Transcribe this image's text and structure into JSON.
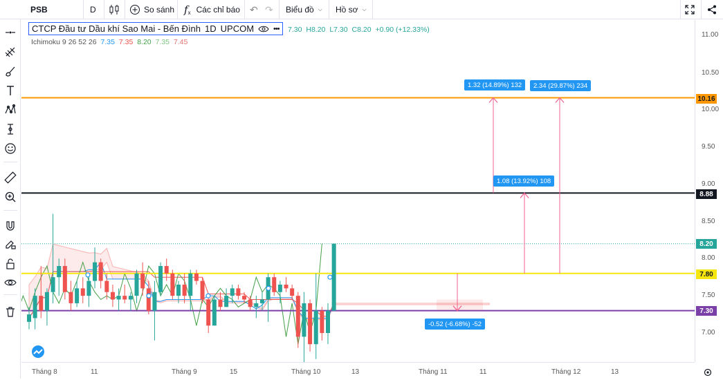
{
  "toolbar": {
    "symbol": "PSB",
    "interval": "D",
    "compare_label": "So sánh",
    "indicators_label": "Các chỉ báo",
    "chart_label": "Biểu đồ",
    "profile_label": "Hồ sơ"
  },
  "legend": {
    "title": "CTCP Đầu tư Dầu khí Sao Mai - Bến Đình",
    "interval": "1D",
    "exchange": "UPCOM",
    "ohlc": [
      "7.30",
      "H8.20",
      "L7.30",
      "C8.20",
      "+0.90 (+12.33%)"
    ],
    "ichimoku_name": "Ichimoku 9 26 52 26",
    "ichimoku_values": [
      "7.35",
      "7.35",
      "8.20",
      "7.35",
      "7.45"
    ]
  },
  "colors": {
    "up": "#26a69a",
    "down": "#ef5350",
    "orange_line": "#ff9800",
    "black_line": "#131722",
    "yellow_line": "#f5e60f",
    "purple_line": "#7b3fa8",
    "measure": "#2196f3",
    "measure_arrow": "#f06292",
    "ichi_blue": "#2196f3",
    "ichi_red": "#ef5350",
    "ichi_green": "#43a047",
    "ichi_lightgreen": "#81c784",
    "ichi_pink": "#e57373"
  },
  "price_axis": {
    "ticks": [
      "11.00",
      "10.50",
      "10.00",
      "9.50",
      "9.00",
      "8.50",
      "8.00",
      "7.50",
      "7.00"
    ],
    "labels": [
      {
        "text": "10.16",
        "price": 10.16,
        "bg": "#ff9800",
        "fg": "#131722"
      },
      {
        "text": "8.88",
        "price": 8.88,
        "bg": "#131722",
        "fg": "#ffffff"
      },
      {
        "text": "8.20",
        "price": 8.2,
        "bg": "#26a69a",
        "fg": "#ffffff"
      },
      {
        "text": "7.80",
        "price": 7.8,
        "bg": "#f5e60f",
        "fg": "#131722"
      },
      {
        "text": "7.30",
        "price": 7.3,
        "bg": "#7b3fa8",
        "fg": "#ffffff"
      }
    ]
  },
  "time_axis": {
    "ticks": [
      "Tháng 8",
      "11",
      "Tháng 9",
      "15",
      "Tháng 10",
      "13",
      "Tháng 11",
      "11",
      "Tháng 12",
      "13"
    ]
  },
  "horizontal_lines": [
    {
      "price": 10.16,
      "color": "#ff9800"
    },
    {
      "price": 8.88,
      "color": "#131722"
    },
    {
      "price": 7.8,
      "color": "#f5e60f"
    },
    {
      "price": 7.3,
      "color": "#7b3fa8"
    }
  ],
  "measures": [
    {
      "text": "1.32 (14.89%) 132"
    },
    {
      "text": "2.34 (29.87%) 234"
    },
    {
      "text": "1.08 (13.92%) 108"
    },
    {
      "text": "-0.52 (-6.68%) -52"
    }
  ],
  "chart_data": {
    "type": "candlestick",
    "title": "CTCP Đầu tư Dầu khí Sao Mai - Bến Đình",
    "ylim": [
      6.6,
      11.2
    ],
    "candles": [
      {
        "o": 7.15,
        "h": 7.35,
        "l": 7.05,
        "c": 7.25
      },
      {
        "o": 7.2,
        "h": 7.6,
        "l": 7.05,
        "c": 7.5
      },
      {
        "o": 7.5,
        "h": 7.9,
        "l": 7.2,
        "c": 7.3
      },
      {
        "o": 7.3,
        "h": 7.6,
        "l": 7.1,
        "c": 7.55
      },
      {
        "o": 7.55,
        "h": 8.6,
        "l": 7.4,
        "c": 7.75
      },
      {
        "o": 7.75,
        "h": 8.0,
        "l": 7.5,
        "c": 7.9
      },
      {
        "o": 7.9,
        "h": 8.0,
        "l": 7.45,
        "c": 7.55
      },
      {
        "o": 7.55,
        "h": 7.7,
        "l": 7.3,
        "c": 7.4
      },
      {
        "o": 7.4,
        "h": 7.7,
        "l": 7.35,
        "c": 7.6
      },
      {
        "o": 7.6,
        "h": 7.75,
        "l": 7.4,
        "c": 7.5
      },
      {
        "o": 7.5,
        "h": 7.8,
        "l": 7.35,
        "c": 7.7
      },
      {
        "o": 7.7,
        "h": 8.15,
        "l": 7.6,
        "c": 7.95
      },
      {
        "o": 7.95,
        "h": 8.0,
        "l": 7.6,
        "c": 7.7
      },
      {
        "o": 7.7,
        "h": 7.8,
        "l": 7.45,
        "c": 7.55
      },
      {
        "o": 7.55,
        "h": 7.65,
        "l": 7.35,
        "c": 7.45
      },
      {
        "o": 7.45,
        "h": 7.6,
        "l": 7.3,
        "c": 7.5
      },
      {
        "o": 7.5,
        "h": 7.65,
        "l": 7.4,
        "c": 7.45
      },
      {
        "o": 7.45,
        "h": 7.55,
        "l": 7.3,
        "c": 7.5
      },
      {
        "o": 7.5,
        "h": 7.85,
        "l": 7.4,
        "c": 7.8
      },
      {
        "o": 7.8,
        "h": 7.95,
        "l": 7.5,
        "c": 7.6
      },
      {
        "o": 7.6,
        "h": 7.7,
        "l": 7.25,
        "c": 7.3
      },
      {
        "o": 7.3,
        "h": 7.7,
        "l": 6.9,
        "c": 7.55
      },
      {
        "o": 7.55,
        "h": 7.95,
        "l": 7.5,
        "c": 7.9
      },
      {
        "o": 7.9,
        "h": 8.0,
        "l": 7.7,
        "c": 7.8
      },
      {
        "o": 7.8,
        "h": 7.85,
        "l": 7.45,
        "c": 7.5
      },
      {
        "o": 7.5,
        "h": 7.7,
        "l": 7.4,
        "c": 7.65
      },
      {
        "o": 7.65,
        "h": 7.8,
        "l": 7.4,
        "c": 7.5
      },
      {
        "o": 7.5,
        "h": 7.85,
        "l": 7.3,
        "c": 7.8
      },
      {
        "o": 7.8,
        "h": 7.85,
        "l": 7.65,
        "c": 7.7
      },
      {
        "o": 7.7,
        "h": 7.75,
        "l": 7.4,
        "c": 7.45
      },
      {
        "o": 7.45,
        "h": 7.5,
        "l": 7.0,
        "c": 7.1
      },
      {
        "o": 7.1,
        "h": 7.5,
        "l": 7.1,
        "c": 7.45
      },
      {
        "o": 7.45,
        "h": 7.55,
        "l": 7.3,
        "c": 7.35
      },
      {
        "o": 7.35,
        "h": 7.6,
        "l": 7.35,
        "c": 7.5
      },
      {
        "o": 7.5,
        "h": 7.65,
        "l": 7.4,
        "c": 7.6
      },
      {
        "o": 7.6,
        "h": 7.65,
        "l": 7.45,
        "c": 7.5
      },
      {
        "o": 7.5,
        "h": 7.55,
        "l": 7.4,
        "c": 7.45
      },
      {
        "o": 7.45,
        "h": 7.5,
        "l": 7.3,
        "c": 7.35
      },
      {
        "o": 7.35,
        "h": 7.5,
        "l": 7.2,
        "c": 7.4
      },
      {
        "o": 7.4,
        "h": 7.55,
        "l": 7.3,
        "c": 7.45
      },
      {
        "o": 7.45,
        "h": 7.8,
        "l": 7.15,
        "c": 7.75
      },
      {
        "o": 7.75,
        "h": 7.8,
        "l": 7.5,
        "c": 7.55
      },
      {
        "o": 7.55,
        "h": 7.7,
        "l": 7.4,
        "c": 7.65
      },
      {
        "o": 7.65,
        "h": 7.75,
        "l": 7.55,
        "c": 7.6
      },
      {
        "o": 7.6,
        "h": 7.65,
        "l": 7.45,
        "c": 7.5
      },
      {
        "o": 7.5,
        "h": 7.55,
        "l": 6.8,
        "c": 6.95
      },
      {
        "o": 6.95,
        "h": 7.55,
        "l": 6.6,
        "c": 7.4
      },
      {
        "o": 7.4,
        "h": 7.45,
        "l": 6.75,
        "c": 6.85
      },
      {
        "o": 6.85,
        "h": 7.8,
        "l": 6.65,
        "c": 7.3
      },
      {
        "o": 7.3,
        "h": 7.35,
        "l": 6.9,
        "c": 7.0
      },
      {
        "o": 7.0,
        "h": 7.4,
        "l": 6.85,
        "c": 7.3
      },
      {
        "o": 7.3,
        "h": 8.2,
        "l": 7.3,
        "c": 8.2
      }
    ]
  }
}
